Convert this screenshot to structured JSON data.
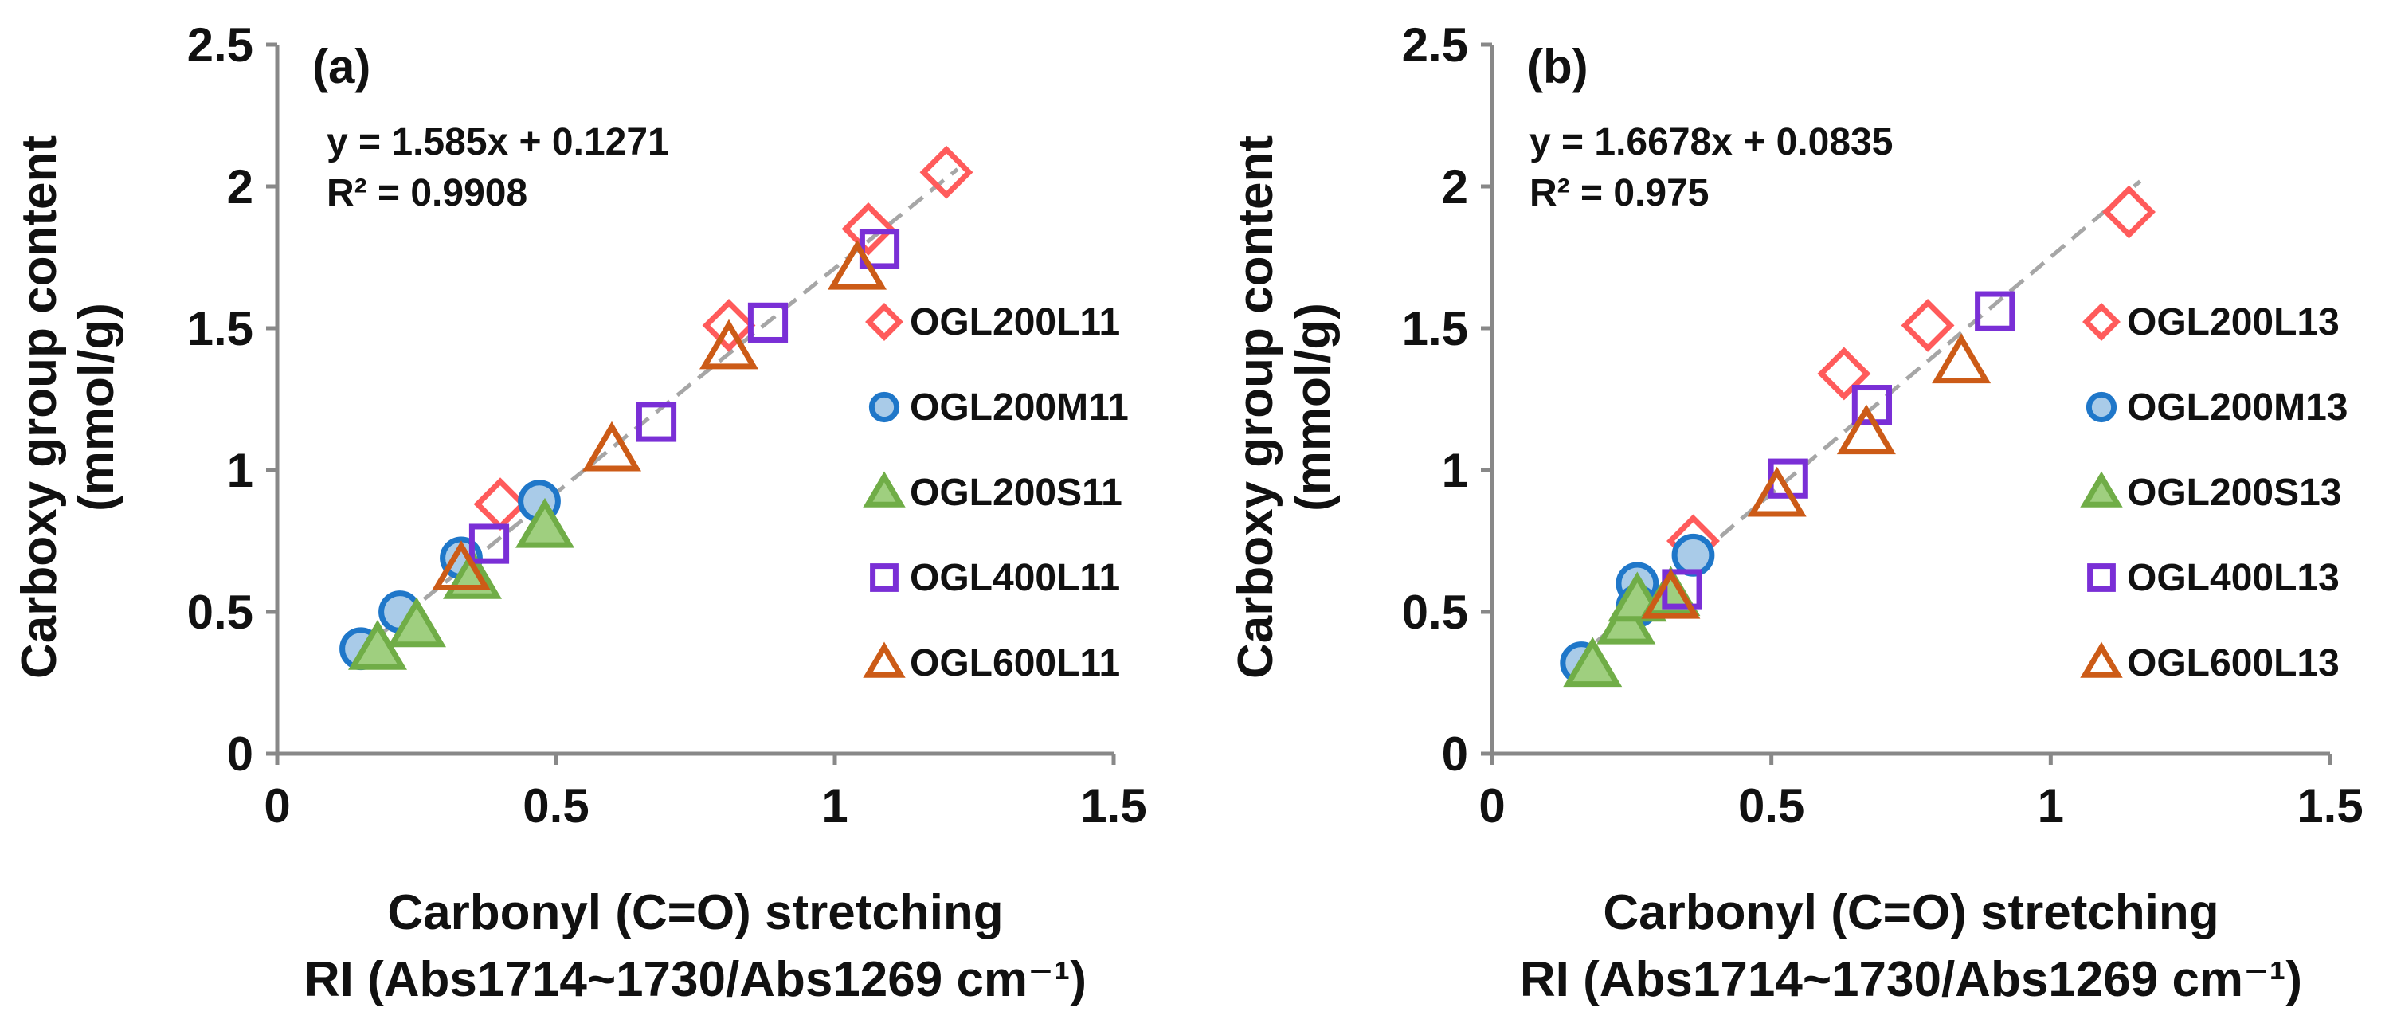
{
  "chart_data": [
    {
      "type": "scatter",
      "panel_label": "(a)",
      "title": "",
      "xlabel": [
        "Carbonyl (C=O) stretching",
        "RI (Abs1714~1730/Abs1269 cm⁻¹)"
      ],
      "ylabel": [
        "Carboxy group content",
        "(mmol/g)"
      ],
      "xlim": [
        0,
        1.5
      ],
      "ylim": [
        0,
        2.5
      ],
      "xticks": [
        "0",
        "0.5",
        "1",
        "1.5"
      ],
      "yticks": [
        "0",
        "0.5",
        "1",
        "1.5",
        "2",
        "2.5"
      ],
      "grid": false,
      "legend_position": "right",
      "fit": {
        "equation": "y = 1.585x + 0.1271",
        "r2": "R² = 0.9908",
        "slope": 1.585,
        "intercept": 0.1271,
        "x_range": [
          0.15,
          1.22
        ],
        "style": "dashed"
      },
      "series": [
        {
          "name": "OGL200L11",
          "marker": "diamond",
          "color": "#ff5b5b",
          "fill": "none",
          "points": [
            [
              0.4,
              0.88
            ],
            [
              0.81,
              1.51
            ],
            [
              1.06,
              1.85
            ],
            [
              1.2,
              2.05
            ]
          ]
        },
        {
          "name": "OGL200M11",
          "marker": "circle",
          "color": "#1f77c9",
          "fill": "#a9cbe8",
          "points": [
            [
              0.15,
              0.37
            ],
            [
              0.22,
              0.5
            ],
            [
              0.33,
              0.69
            ],
            [
              0.47,
              0.89
            ]
          ]
        },
        {
          "name": "OGL200S11",
          "marker": "triangle",
          "color": "#70ad47",
          "fill": "#9fcf7f",
          "points": [
            [
              0.18,
              0.37
            ],
            [
              0.25,
              0.45
            ],
            [
              0.35,
              0.62
            ],
            [
              0.48,
              0.8
            ]
          ]
        },
        {
          "name": "OGL400L11",
          "marker": "square",
          "color": "#7a2fd6",
          "fill": "none",
          "points": [
            [
              0.38,
              0.74
            ],
            [
              0.68,
              1.17
            ],
            [
              0.88,
              1.52
            ],
            [
              1.08,
              1.78
            ]
          ]
        },
        {
          "name": "OGL600L11",
          "marker": "triangle",
          "color": "#cc5b17",
          "fill": "none",
          "points": [
            [
              0.33,
              0.65
            ],
            [
              0.6,
              1.07
            ],
            [
              0.81,
              1.43
            ],
            [
              1.04,
              1.71
            ]
          ]
        }
      ]
    },
    {
      "type": "scatter",
      "panel_label": "(b)",
      "title": "",
      "xlabel": [
        "Carbonyl (C=O) stretching",
        "RI (Abs1714~1730/Abs1269 cm⁻¹)"
      ],
      "ylabel": [
        "Carboxy group content",
        "(mmol/g)"
      ],
      "xlim": [
        0,
        1.5
      ],
      "ylim": [
        0,
        2.5
      ],
      "xticks": [
        "0",
        "0.5",
        "1",
        "1.5"
      ],
      "yticks": [
        "0",
        "0.5",
        "1",
        "1.5",
        "2",
        "2.5"
      ],
      "grid": false,
      "legend_position": "right",
      "fit": {
        "equation": "y = 1.6678x + 0.0835",
        "r2": "R² = 0.975",
        "slope": 1.6678,
        "intercept": 0.0835,
        "x_range": [
          0.15,
          1.16
        ],
        "style": "dashed"
      },
      "series": [
        {
          "name": "OGL200L13",
          "marker": "diamond",
          "color": "#ff5b5b",
          "fill": "none",
          "points": [
            [
              0.36,
              0.75
            ],
            [
              0.63,
              1.34
            ],
            [
              0.78,
              1.51
            ],
            [
              1.14,
              1.91
            ]
          ]
        },
        {
          "name": "OGL200M13",
          "marker": "circle",
          "color": "#1f77c9",
          "fill": "#a9cbe8",
          "points": [
            [
              0.16,
              0.32
            ],
            [
              0.26,
              0.6
            ],
            [
              0.26,
              0.52
            ],
            [
              0.36,
              0.7
            ]
          ]
        },
        {
          "name": "OGL200S13",
          "marker": "triangle",
          "color": "#70ad47",
          "fill": "#9fcf7f",
          "points": [
            [
              0.18,
              0.31
            ],
            [
              0.24,
              0.46
            ],
            [
              0.26,
              0.54
            ],
            [
              0.32,
              0.56
            ]
          ]
        },
        {
          "name": "OGL400L13",
          "marker": "square",
          "color": "#7a2fd6",
          "fill": "none",
          "points": [
            [
              0.34,
              0.58
            ],
            [
              0.53,
              0.97
            ],
            [
              0.68,
              1.23
            ],
            [
              0.9,
              1.56
            ]
          ]
        },
        {
          "name": "OGL600L13",
          "marker": "triangle",
          "color": "#cc5b17",
          "fill": "none",
          "points": [
            [
              0.32,
              0.55
            ],
            [
              0.51,
              0.91
            ],
            [
              0.67,
              1.13
            ],
            [
              0.84,
              1.38
            ]
          ]
        }
      ]
    }
  ]
}
